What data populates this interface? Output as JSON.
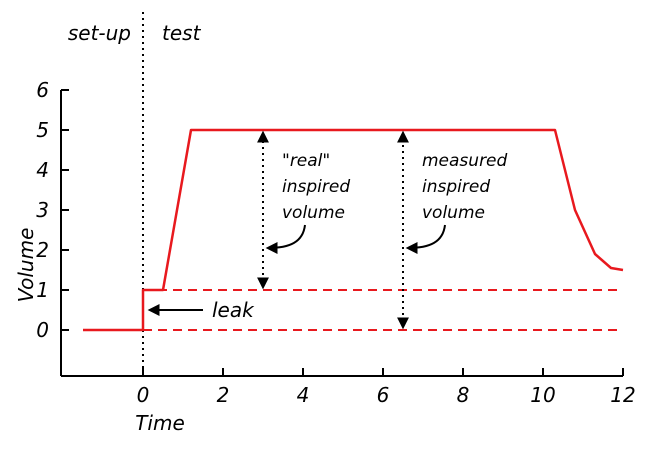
{
  "chart_data": {
    "type": "line",
    "title": "",
    "xlabel": "Time",
    "ylabel": "Volume",
    "xlim": [
      -1.5,
      12
    ],
    "ylim": [
      -1,
      6
    ],
    "xticks": [
      0,
      2,
      4,
      6,
      8,
      10,
      12
    ],
    "yticks": [
      0,
      1,
      2,
      3,
      4,
      5,
      6
    ],
    "grid": false,
    "series": [
      {
        "color": "#e8191e",
        "x": [
          -1.5,
          0,
          0,
          0.5,
          1.2,
          10.3,
          10.8,
          11.3,
          11.7,
          12
        ],
        "y": [
          0,
          0,
          1,
          1,
          5,
          5,
          3.0,
          1.9,
          1.55,
          1.5
        ]
      }
    ],
    "reference_lines": [
      {
        "y": 1,
        "x_from": 0,
        "x_to": 12,
        "style": "dashed",
        "color": "#e8191e"
      },
      {
        "y": 0,
        "x_from": 0,
        "x_to": 12,
        "style": "dashed",
        "color": "#e8191e"
      }
    ],
    "divider": {
      "x": 0,
      "style": "dotted",
      "color": "#000000"
    },
    "phase_labels": [
      "set-up",
      "test"
    ],
    "measure_arrows": [
      {
        "x": 3,
        "y_from": 1,
        "y_to": 5
      },
      {
        "x": 6.5,
        "y_from": 0,
        "y_to": 5
      }
    ],
    "annotations": [
      {
        "lines": [
          "\"real\"",
          "inspired",
          "volume"
        ]
      },
      {
        "lines": [
          "measured",
          "inspired",
          "volume"
        ]
      },
      {
        "lines": [
          "leak"
        ]
      }
    ]
  }
}
